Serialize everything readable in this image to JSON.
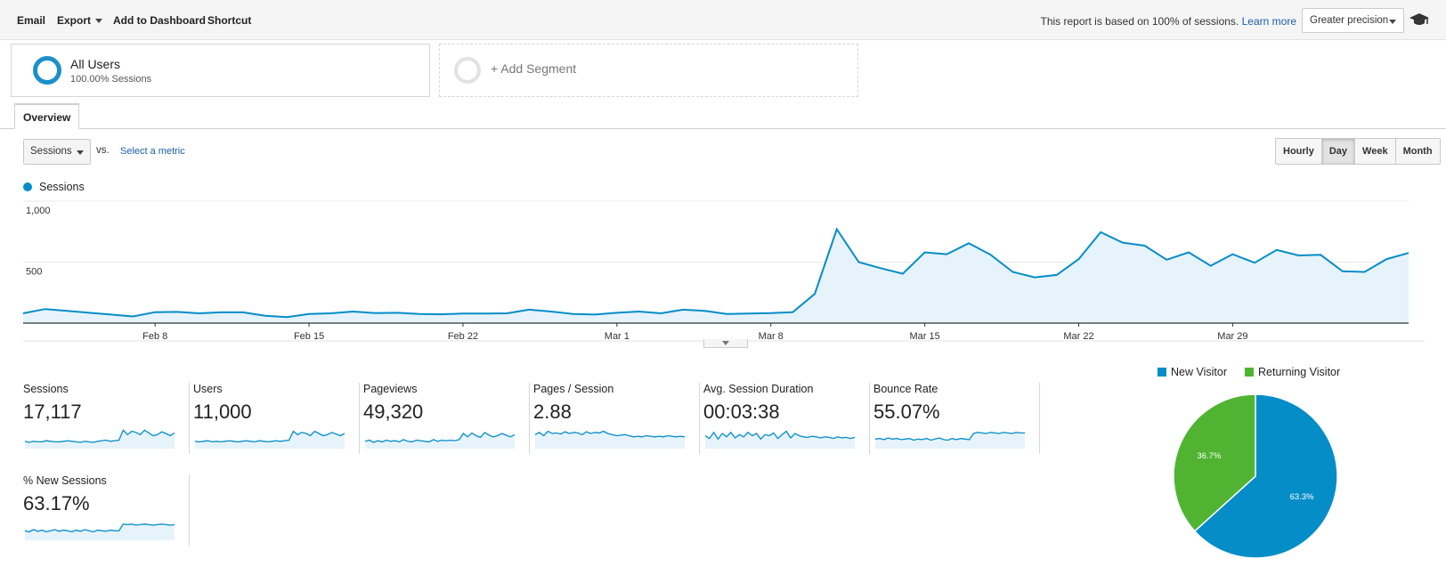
{
  "toolbar": {
    "email": "Email",
    "export": "Export",
    "add_to_dashboard": "Add to Dashboard",
    "shortcut": "Shortcut",
    "report_note": "This report is based on 100% of sessions.",
    "learn_more": "Learn more",
    "precision": "Greater precision",
    "icon": "graduation-cap-icon"
  },
  "segments": {
    "active_title": "All Users",
    "active_sub": "100.00% Sessions",
    "add_label": "+ Add Segment"
  },
  "tabs": {
    "overview": "Overview"
  },
  "controls": {
    "metric": "Sessions",
    "vs": "vs.",
    "select_metric": "Select a metric",
    "intervals": [
      "Hourly",
      "Day",
      "Week",
      "Month"
    ],
    "active_interval": "Day"
  },
  "colors": {
    "accent": "#058dc7",
    "returning": "#50b432",
    "fill": "#e6f3fa"
  },
  "chart_data": [
    {
      "type": "area",
      "series": [
        {
          "name": "Sessions",
          "values": [
            80,
            115,
            100,
            85,
            70,
            55,
            90,
            92,
            80,
            88,
            88,
            60,
            50,
            75,
            80,
            95,
            82,
            85,
            75,
            72,
            78,
            78,
            80,
            110,
            95,
            75,
            70,
            85,
            95,
            80,
            110,
            100,
            75,
            78,
            82,
            90,
            240,
            770,
            500,
            450,
            405,
            580,
            565,
            655,
            560,
            420,
            375,
            395,
            525,
            745,
            660,
            635,
            520,
            580,
            470,
            565,
            495,
            600,
            555,
            560,
            425,
            420,
            525,
            575
          ]
        }
      ],
      "x_ticks": [
        "Feb 8",
        "Feb 15",
        "Feb 22",
        "Mar 1",
        "Mar 8",
        "Mar 15",
        "Mar 22",
        "Mar 29"
      ],
      "y_ticks": [
        1000,
        500
      ],
      "y_tick_labels": [
        "1,000",
        "500"
      ],
      "ylim": [
        0,
        1000
      ],
      "grid": true
    },
    {
      "type": "pie",
      "categories": [
        "New Visitor",
        "Returning Visitor"
      ],
      "values": [
        63.3,
        36.7
      ],
      "value_labels": [
        "63.3%",
        "36.7%"
      ],
      "legend": "top"
    }
  ],
  "metrics": [
    {
      "name": "Sessions",
      "value": "17,117",
      "spark": [
        10,
        8,
        10,
        9,
        9,
        11,
        10,
        9,
        9,
        10,
        11,
        10,
        9,
        8,
        10,
        9,
        8,
        10,
        11,
        12,
        10,
        11,
        12,
        30,
        22,
        28,
        26,
        22,
        30,
        25,
        20,
        22,
        27,
        24,
        20,
        25
      ]
    },
    {
      "name": "Users",
      "value": "11,000",
      "spark": [
        10,
        9,
        10,
        11,
        9,
        10,
        9,
        10,
        11,
        10,
        9,
        10,
        11,
        10,
        9,
        11,
        10,
        9,
        10,
        11,
        10,
        11,
        12,
        28,
        22,
        26,
        24,
        20,
        28,
        24,
        20,
        22,
        26,
        23,
        20,
        24
      ]
    },
    {
      "name": "Pageviews",
      "value": "49,320",
      "spark": [
        10,
        12,
        8,
        11,
        9,
        12,
        10,
        11,
        9,
        13,
        10,
        9,
        12,
        11,
        10,
        9,
        13,
        10,
        12,
        11,
        12,
        11,
        13,
        24,
        18,
        25,
        20,
        17,
        26,
        21,
        18,
        20,
        24,
        21,
        18,
        22
      ]
    },
    {
      "name": "Pages / Session",
      "value": "2.88",
      "spark": [
        22,
        26,
        20,
        28,
        24,
        25,
        23,
        27,
        24,
        26,
        25,
        22,
        27,
        24,
        26,
        25,
        28,
        24,
        22,
        20,
        21,
        22,
        20,
        18,
        19,
        18,
        20,
        19,
        18,
        19,
        18,
        20,
        19,
        18,
        19,
        18
      ]
    },
    {
      "name": "Avg. Session Duration",
      "value": "00:03:38",
      "spark": [
        20,
        15,
        26,
        14,
        24,
        18,
        26,
        16,
        22,
        18,
        26,
        20,
        24,
        14,
        22,
        20,
        25,
        15,
        22,
        28,
        16,
        24,
        20,
        18,
        17,
        19,
        18,
        16,
        18,
        17,
        15,
        18,
        16,
        17,
        15,
        17
      ]
    },
    {
      "name": "Bounce Rate",
      "value": "55.07%",
      "spark": [
        14,
        15,
        13,
        16,
        14,
        15,
        13,
        14,
        15,
        12,
        14,
        13,
        15,
        12,
        14,
        16,
        13,
        12,
        15,
        13,
        15,
        14,
        13,
        24,
        26,
        25,
        24,
        26,
        25,
        24,
        26,
        25,
        24,
        26,
        25,
        25
      ]
    },
    {
      "name": "% New Sessions",
      "value": "63.17%",
      "spark": [
        14,
        12,
        16,
        13,
        15,
        12,
        14,
        16,
        13,
        15,
        14,
        12,
        15,
        13,
        16,
        14,
        12,
        15,
        14,
        13,
        15,
        14,
        14,
        26,
        25,
        26,
        24,
        25,
        26,
        25,
        24,
        25,
        26,
        25,
        24,
        25
      ]
    }
  ]
}
